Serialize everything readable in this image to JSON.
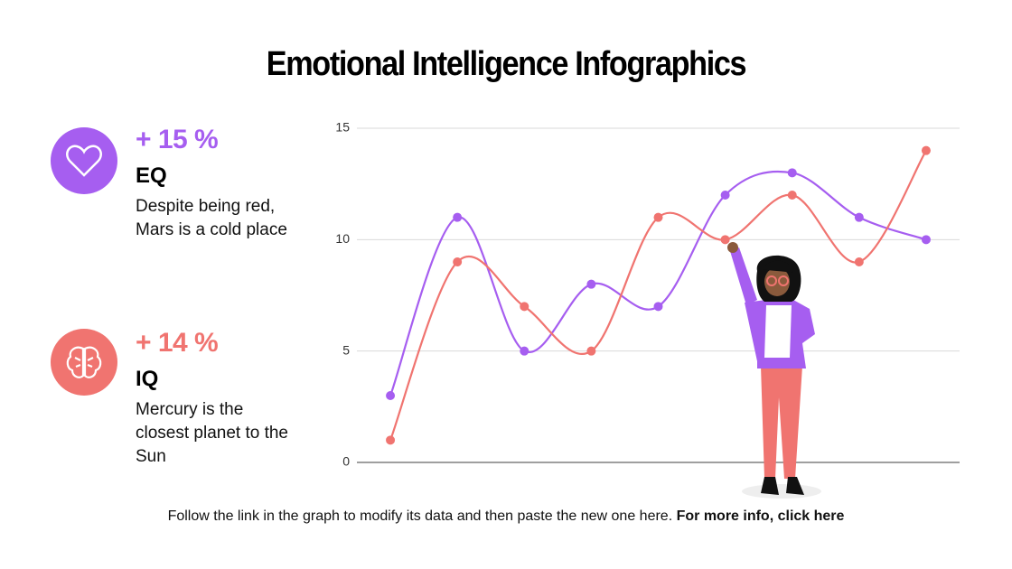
{
  "title": "Emotional Intelligence Infographics",
  "items": [
    {
      "percent": "+ 15 %",
      "label": "EQ",
      "text": "Despite being red, Mars is a cold place"
    },
    {
      "percent": "+ 14 %",
      "label": "IQ",
      "text": "Mercury is the closest planet to the Sun"
    }
  ],
  "footer": {
    "text": "Follow the link in the graph to modify its data and then paste the new one here.",
    "link": "For more info, click here"
  },
  "chart_data": {
    "type": "line",
    "categories": [
      null,
      null,
      null,
      null,
      null,
      null,
      null,
      null,
      null
    ],
    "series": [
      {
        "color": "#a65ef0",
        "values": [
          3,
          11,
          5,
          8,
          7,
          12,
          13,
          11,
          10
        ]
      },
      {
        "color": "#f07470",
        "values": [
          1,
          9,
          7,
          5,
          11,
          10,
          12,
          9,
          14
        ]
      }
    ],
    "ylim": [
      0,
      15
    ],
    "yticks": [
      0,
      5,
      10,
      15
    ],
    "grid": true,
    "smooth": true
  }
}
